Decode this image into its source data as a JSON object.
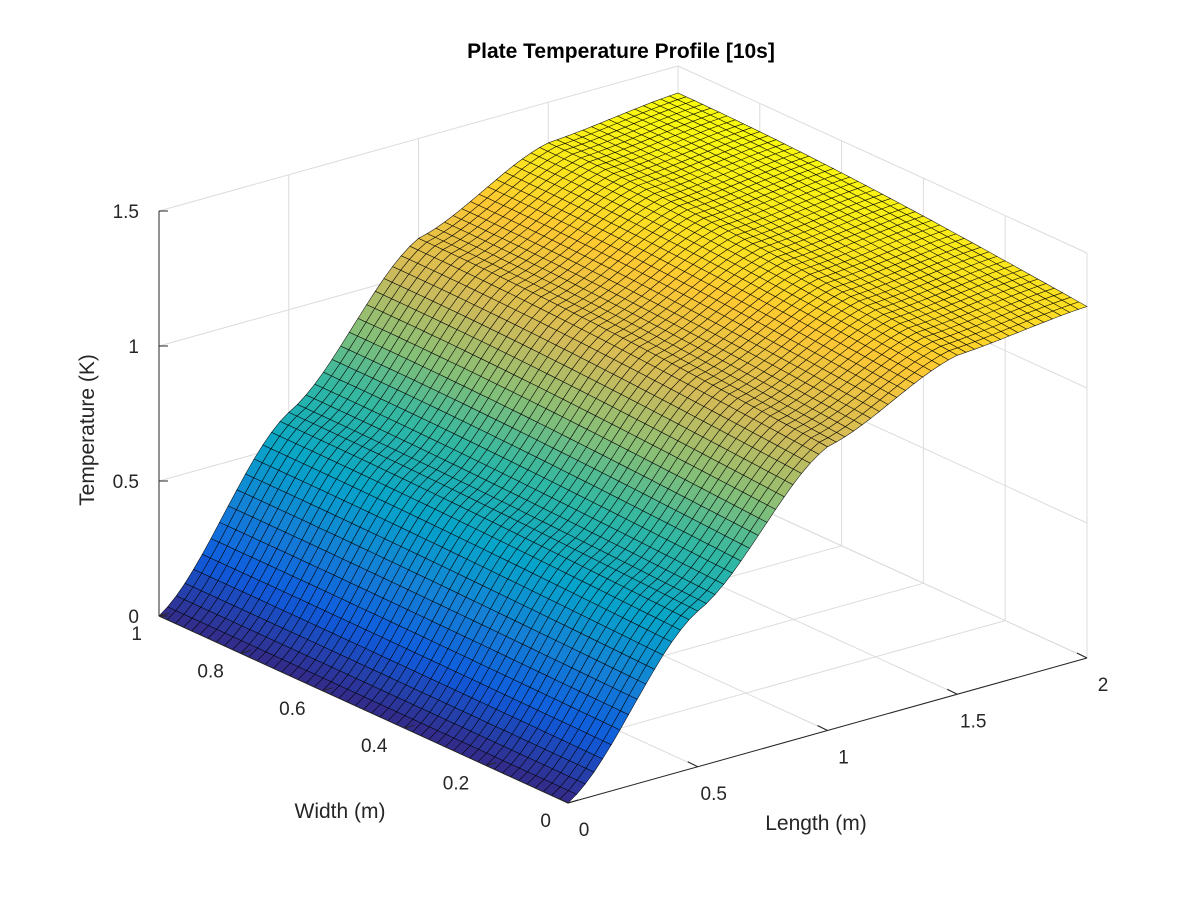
{
  "chart_data": {
    "type": "surface",
    "title": "Plate Temperature Profile [10s]",
    "xlabel": "Length (m)",
    "ylabel": "Width (m)",
    "zlabel": "Temperature (K)",
    "xlim": [
      0,
      2
    ],
    "ylim": [
      0,
      1
    ],
    "zlim": [
      0,
      1.5
    ],
    "x_ticks": [
      "0",
      "0.5",
      "1",
      "1.5",
      "2"
    ],
    "y_ticks": [
      "0",
      "0.2",
      "0.4",
      "0.6",
      "0.8",
      "1"
    ],
    "z_ticks": [
      "0",
      "0.5",
      "1",
      "1.5"
    ],
    "grid": true,
    "colormap": "parula",
    "colormap_stops": [
      "#352a87",
      "#0f5cdd",
      "#1481d6",
      "#06a4ca",
      "#2eb7a4",
      "#87bf77",
      "#d1bb59",
      "#fec832",
      "#f9fb0e"
    ],
    "surface": {
      "x_range": [
        0,
        2
      ],
      "y_range": [
        0,
        1
      ],
      "x_count": 61,
      "y_count": 51,
      "temperature_along_length": [
        [
          0.0,
          0.0
        ],
        [
          0.5,
          0.62
        ],
        [
          1.0,
          1.13
        ],
        [
          1.5,
          1.35
        ],
        [
          2.0,
          1.4
        ]
      ],
      "temperature_at_width": [
        [
          0.0,
          0.93
        ],
        [
          1.0,
          1.0
        ]
      ]
    }
  }
}
